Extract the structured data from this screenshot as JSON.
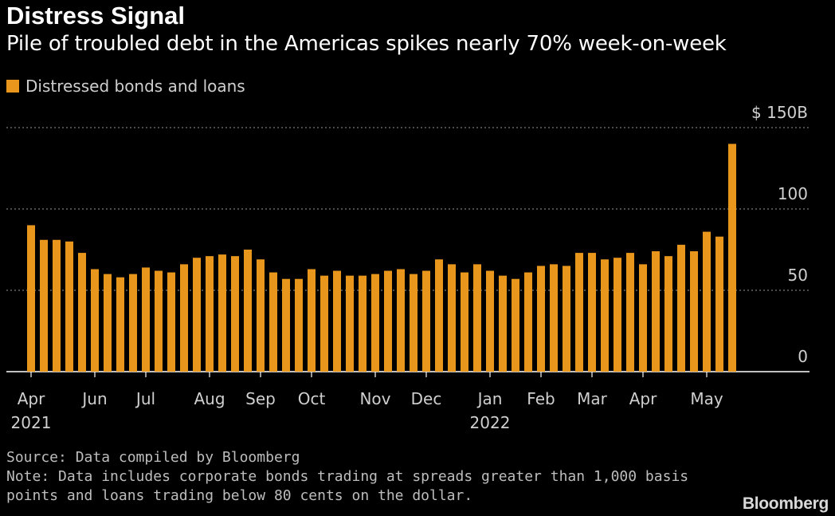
{
  "header": {
    "title": "Distress Signal",
    "subtitle": "Pile of troubled debt in the Americas spikes nearly 70% week-on-week"
  },
  "legend": {
    "label": "Distressed bonds and loans"
  },
  "footer": {
    "source": "Source: Data compiled by Bloomberg",
    "note_line1": "Note: Data includes corporate bonds trading at spreads greater than 1,000 basis",
    "note_line2": "points and loans trading below 80 cents on the dollar.",
    "logo": "Bloomberg"
  },
  "colors": {
    "bar": "#e8961c",
    "background": "#000000",
    "grid": "#7a7a7a"
  },
  "chart_data": {
    "type": "bar",
    "title": "Distress Signal",
    "subtitle": "Pile of troubled debt in the Americas spikes nearly 70% week-on-week",
    "series": [
      {
        "name": "Distressed bonds and loans",
        "values": [
          90,
          81,
          81,
          80,
          73,
          63,
          60,
          58,
          60,
          64,
          62,
          61,
          66,
          70,
          71,
          72,
          71,
          75,
          69,
          61,
          57,
          57,
          63,
          59,
          62,
          59,
          59,
          60,
          62,
          63,
          60,
          62,
          69,
          66,
          61,
          66,
          62,
          59,
          57,
          61,
          65,
          66,
          65,
          73,
          73,
          69,
          70,
          73,
          66,
          74,
          71,
          78,
          74,
          86,
          83,
          140
        ]
      }
    ],
    "ylim": [
      0,
      150
    ],
    "y_ticks": [
      {
        "value": 0,
        "label": "0"
      },
      {
        "value": 50,
        "label": "50"
      },
      {
        "value": 100,
        "label": "100"
      },
      {
        "value": 150,
        "label": "$ 150B"
      }
    ],
    "x_ticks": [
      {
        "index": 0,
        "label": "Apr",
        "sublabel": "2021"
      },
      {
        "index": 5,
        "label": "Jun"
      },
      {
        "index": 9,
        "label": "Jul"
      },
      {
        "index": 14,
        "label": "Aug"
      },
      {
        "index": 18,
        "label": "Sep"
      },
      {
        "index": 22,
        "label": "Oct"
      },
      {
        "index": 27,
        "label": "Nov"
      },
      {
        "index": 31,
        "label": "Dec"
      },
      {
        "index": 36,
        "label": "Jan",
        "sublabel": "2022"
      },
      {
        "index": 40,
        "label": "Feb"
      },
      {
        "index": 44,
        "label": "Mar"
      },
      {
        "index": 48,
        "label": "Apr"
      },
      {
        "index": 53,
        "label": "May"
      }
    ],
    "grid": "dotted horizontal",
    "legend_position": "top-left",
    "xlabel": "",
    "ylabel": ""
  }
}
